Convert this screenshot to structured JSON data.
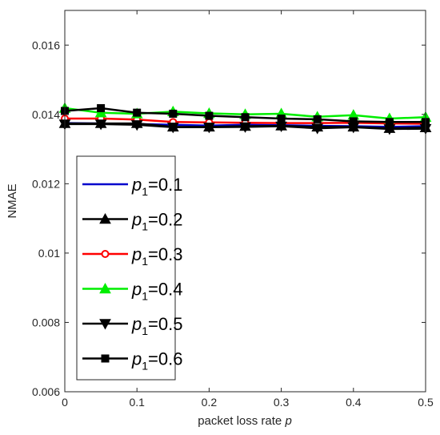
{
  "chart_data": {
    "type": "line",
    "xlabel": "packet loss rate",
    "xlabel_var": "p",
    "ylabel": "NMAE",
    "xlim": [
      0,
      0.5
    ],
    "ylim": [
      0.006,
      0.017
    ],
    "x_ticks": [
      0,
      0.1,
      0.2,
      0.3,
      0.4,
      0.5
    ],
    "x_tick_labels": [
      "0",
      "0.1",
      "0.2",
      "0.3",
      "0.4",
      "0.5"
    ],
    "y_ticks": [
      0.006,
      0.008,
      0.01,
      0.012,
      0.014,
      0.016
    ],
    "y_tick_labels": [
      "0.006",
      "0.008",
      "0.01",
      "0.012",
      "0.014",
      "0.016"
    ],
    "grid": false,
    "legend_placement": "lower-left",
    "x": [
      0,
      0.05,
      0.1,
      0.15,
      0.2,
      0.25,
      0.3,
      0.35,
      0.4,
      0.45,
      0.5
    ],
    "series": [
      {
        "name": "p1=0.1",
        "label_var": "p",
        "label_sub": "1",
        "label_rest": "=0.1",
        "color": "#0000cc",
        "marker": "none",
        "values": [
          0.01375,
          0.01374,
          0.01372,
          0.0137,
          0.01368,
          0.0137,
          0.01369,
          0.01367,
          0.01366,
          0.01364,
          0.01366
        ]
      },
      {
        "name": "p1=0.2",
        "label_var": "p",
        "label_sub": "1",
        "label_rest": "=0.2",
        "color": "#000000",
        "marker": "triangle-up",
        "values": [
          0.01374,
          0.01374,
          0.01374,
          0.01364,
          0.01364,
          0.01366,
          0.01367,
          0.01364,
          0.01364,
          0.0136,
          0.01362
        ]
      },
      {
        "name": "p1=0.3",
        "label_var": "p",
        "label_sub": "1",
        "label_rest": "=0.3",
        "color": "#ff0000",
        "marker": "circle",
        "values": [
          0.01388,
          0.01388,
          0.01385,
          0.01378,
          0.01377,
          0.01376,
          0.01375,
          0.01375,
          0.01376,
          0.01374,
          0.01373
        ]
      },
      {
        "name": "p1=0.4",
        "label_var": "p",
        "label_sub": "1",
        "label_rest": "=0.4",
        "color": "#00ee00",
        "marker": "triangle-up",
        "values": [
          0.01418,
          0.01405,
          0.01402,
          0.01408,
          0.01403,
          0.014,
          0.01402,
          0.01393,
          0.01398,
          0.01388,
          0.01392
        ]
      },
      {
        "name": "p1=0.5",
        "label_var": "p",
        "label_sub": "1",
        "label_rest": "=0.5",
        "color": "#000000",
        "marker": "triangle-down",
        "values": [
          0.01372,
          0.01372,
          0.0137,
          0.01363,
          0.01363,
          0.01364,
          0.01366,
          0.0136,
          0.01363,
          0.01358,
          0.01359
        ]
      },
      {
        "name": "p1=0.6",
        "label_var": "p",
        "label_sub": "1",
        "label_rest": "=0.6",
        "color": "#000000",
        "marker": "square",
        "values": [
          0.0141,
          0.01418,
          0.01405,
          0.01402,
          0.01396,
          0.01392,
          0.01388,
          0.01386,
          0.0138,
          0.01378,
          0.01378
        ]
      }
    ]
  }
}
